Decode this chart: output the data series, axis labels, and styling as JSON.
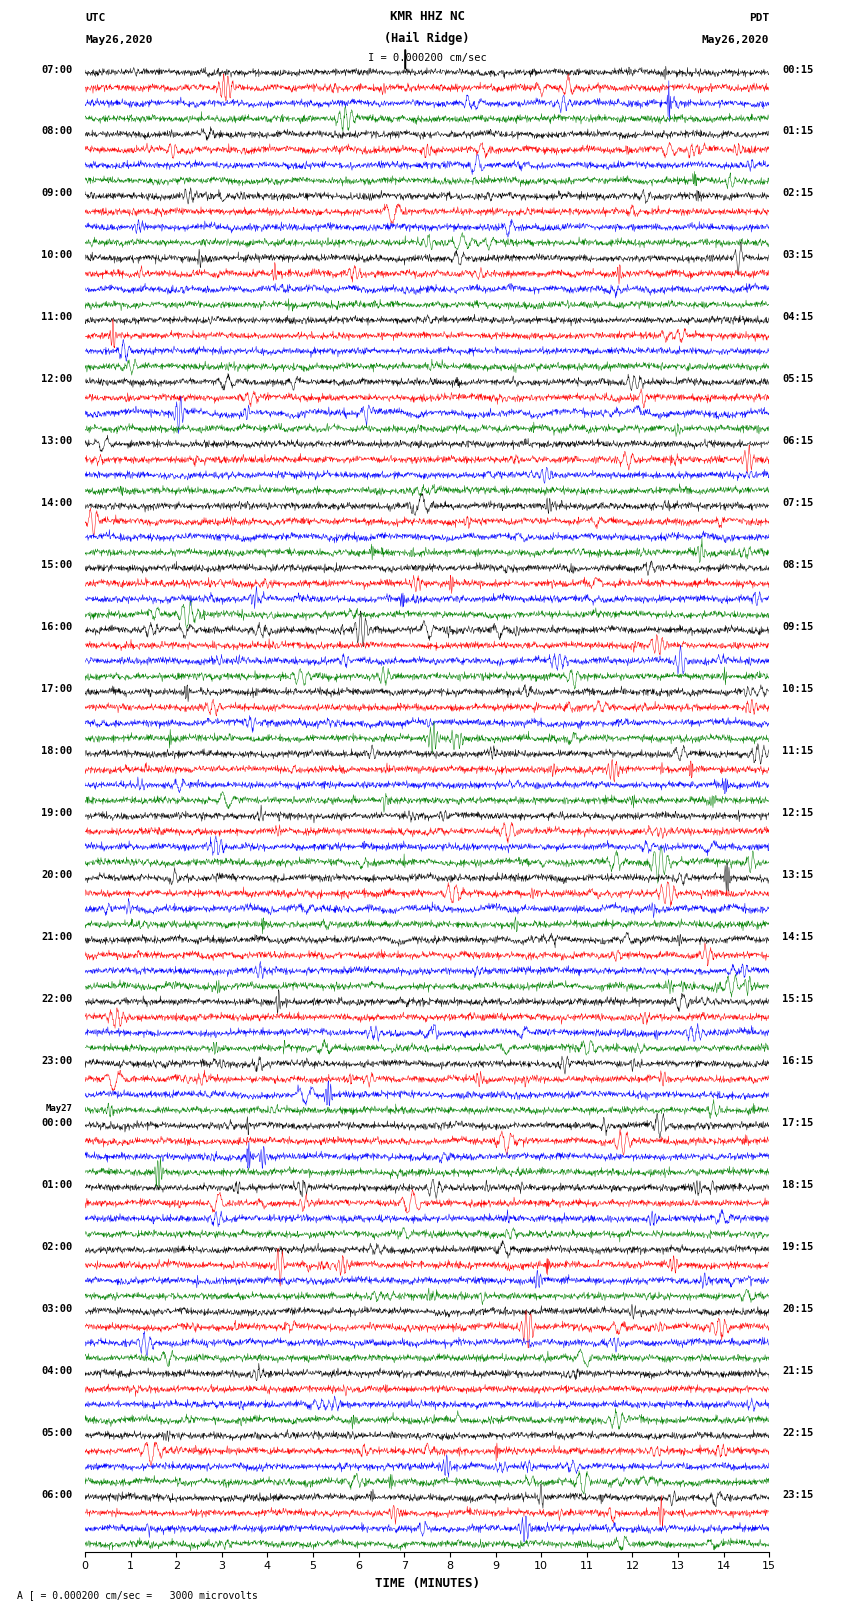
{
  "title_line1": "KMR HHZ NC",
  "title_line2": "(Hail Ridge)",
  "left_header_line1": "UTC",
  "left_header_line2": "May26,2020",
  "right_header_line1": "PDT",
  "right_header_line2": "May26,2020",
  "scale_text": "I = 0.000200 cm/sec",
  "bottom_label": "A [ = 0.000200 cm/sec =   3000 microvolts",
  "xlabel": "TIME (MINUTES)",
  "time_minutes": 15,
  "colors": [
    "#000000",
    "#ff0000",
    "#0000ff",
    "#008000"
  ],
  "n_hour_groups": 24,
  "n_traces_per_group": 4,
  "n_samples": 1800,
  "background_color": "#ffffff",
  "line_width": 0.35,
  "fig_width": 8.5,
  "fig_height": 16.13,
  "utc_hours": [
    7,
    8,
    9,
    10,
    11,
    12,
    13,
    14,
    15,
    16,
    17,
    18,
    19,
    20,
    21,
    22,
    23,
    0,
    1,
    2,
    3,
    4,
    5,
    6
  ],
  "pdt_labels": [
    "00:15",
    "01:15",
    "02:15",
    "03:15",
    "04:15",
    "05:15",
    "06:15",
    "07:15",
    "08:15",
    "09:15",
    "10:15",
    "11:15",
    "12:15",
    "13:15",
    "14:15",
    "15:15",
    "16:15",
    "17:15",
    "18:15",
    "19:15",
    "20:15",
    "21:15",
    "22:15",
    "23:15"
  ],
  "may27_group": 17
}
